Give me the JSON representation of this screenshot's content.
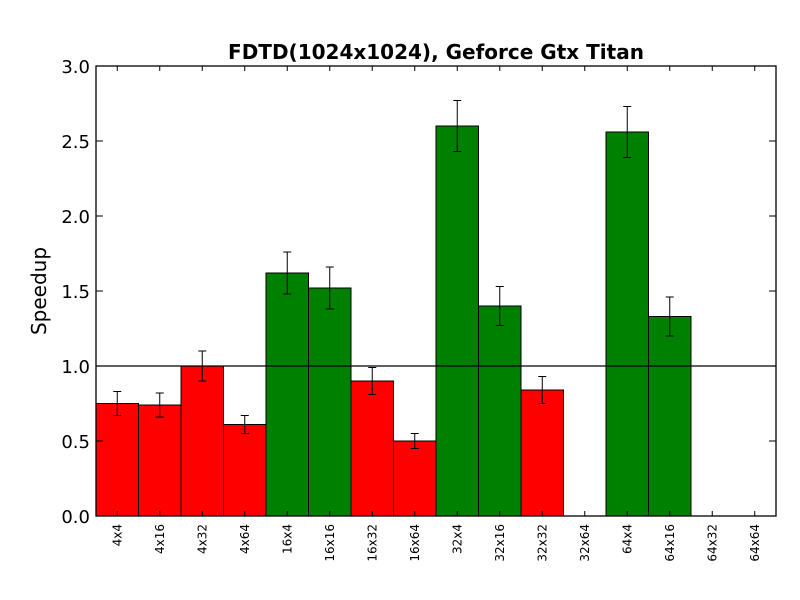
{
  "chart_data": {
    "type": "bar",
    "title": "FDTD(1024x1024), Geforce Gtx Titan",
    "xlabel": "",
    "ylabel": "Speedup",
    "ylim": [
      0,
      3.0
    ],
    "yticks": [
      "0.0",
      "0.5",
      "1.0",
      "1.5",
      "2.0",
      "2.5",
      "3.0"
    ],
    "reference_line": 1.0,
    "grid": false,
    "categories": [
      "4x4",
      "4x16",
      "4x32",
      "4x64",
      "16x4",
      "16x16",
      "16x32",
      "16x64",
      "32x4",
      "32x16",
      "32x32",
      "32x64",
      "64x4",
      "64x16",
      "64x32",
      "64x64"
    ],
    "values": [
      0.75,
      0.74,
      1.0,
      0.61,
      1.62,
      1.52,
      0.9,
      0.5,
      2.6,
      1.4,
      0.84,
      null,
      2.56,
      1.33,
      null,
      null
    ],
    "errors": [
      0.08,
      0.08,
      0.1,
      0.06,
      0.14,
      0.14,
      0.09,
      0.05,
      0.17,
      0.13,
      0.09,
      null,
      0.17,
      0.13,
      null,
      null
    ],
    "colors": {
      "below_baseline": "#ff0000",
      "above_baseline": "#008000"
    }
  }
}
